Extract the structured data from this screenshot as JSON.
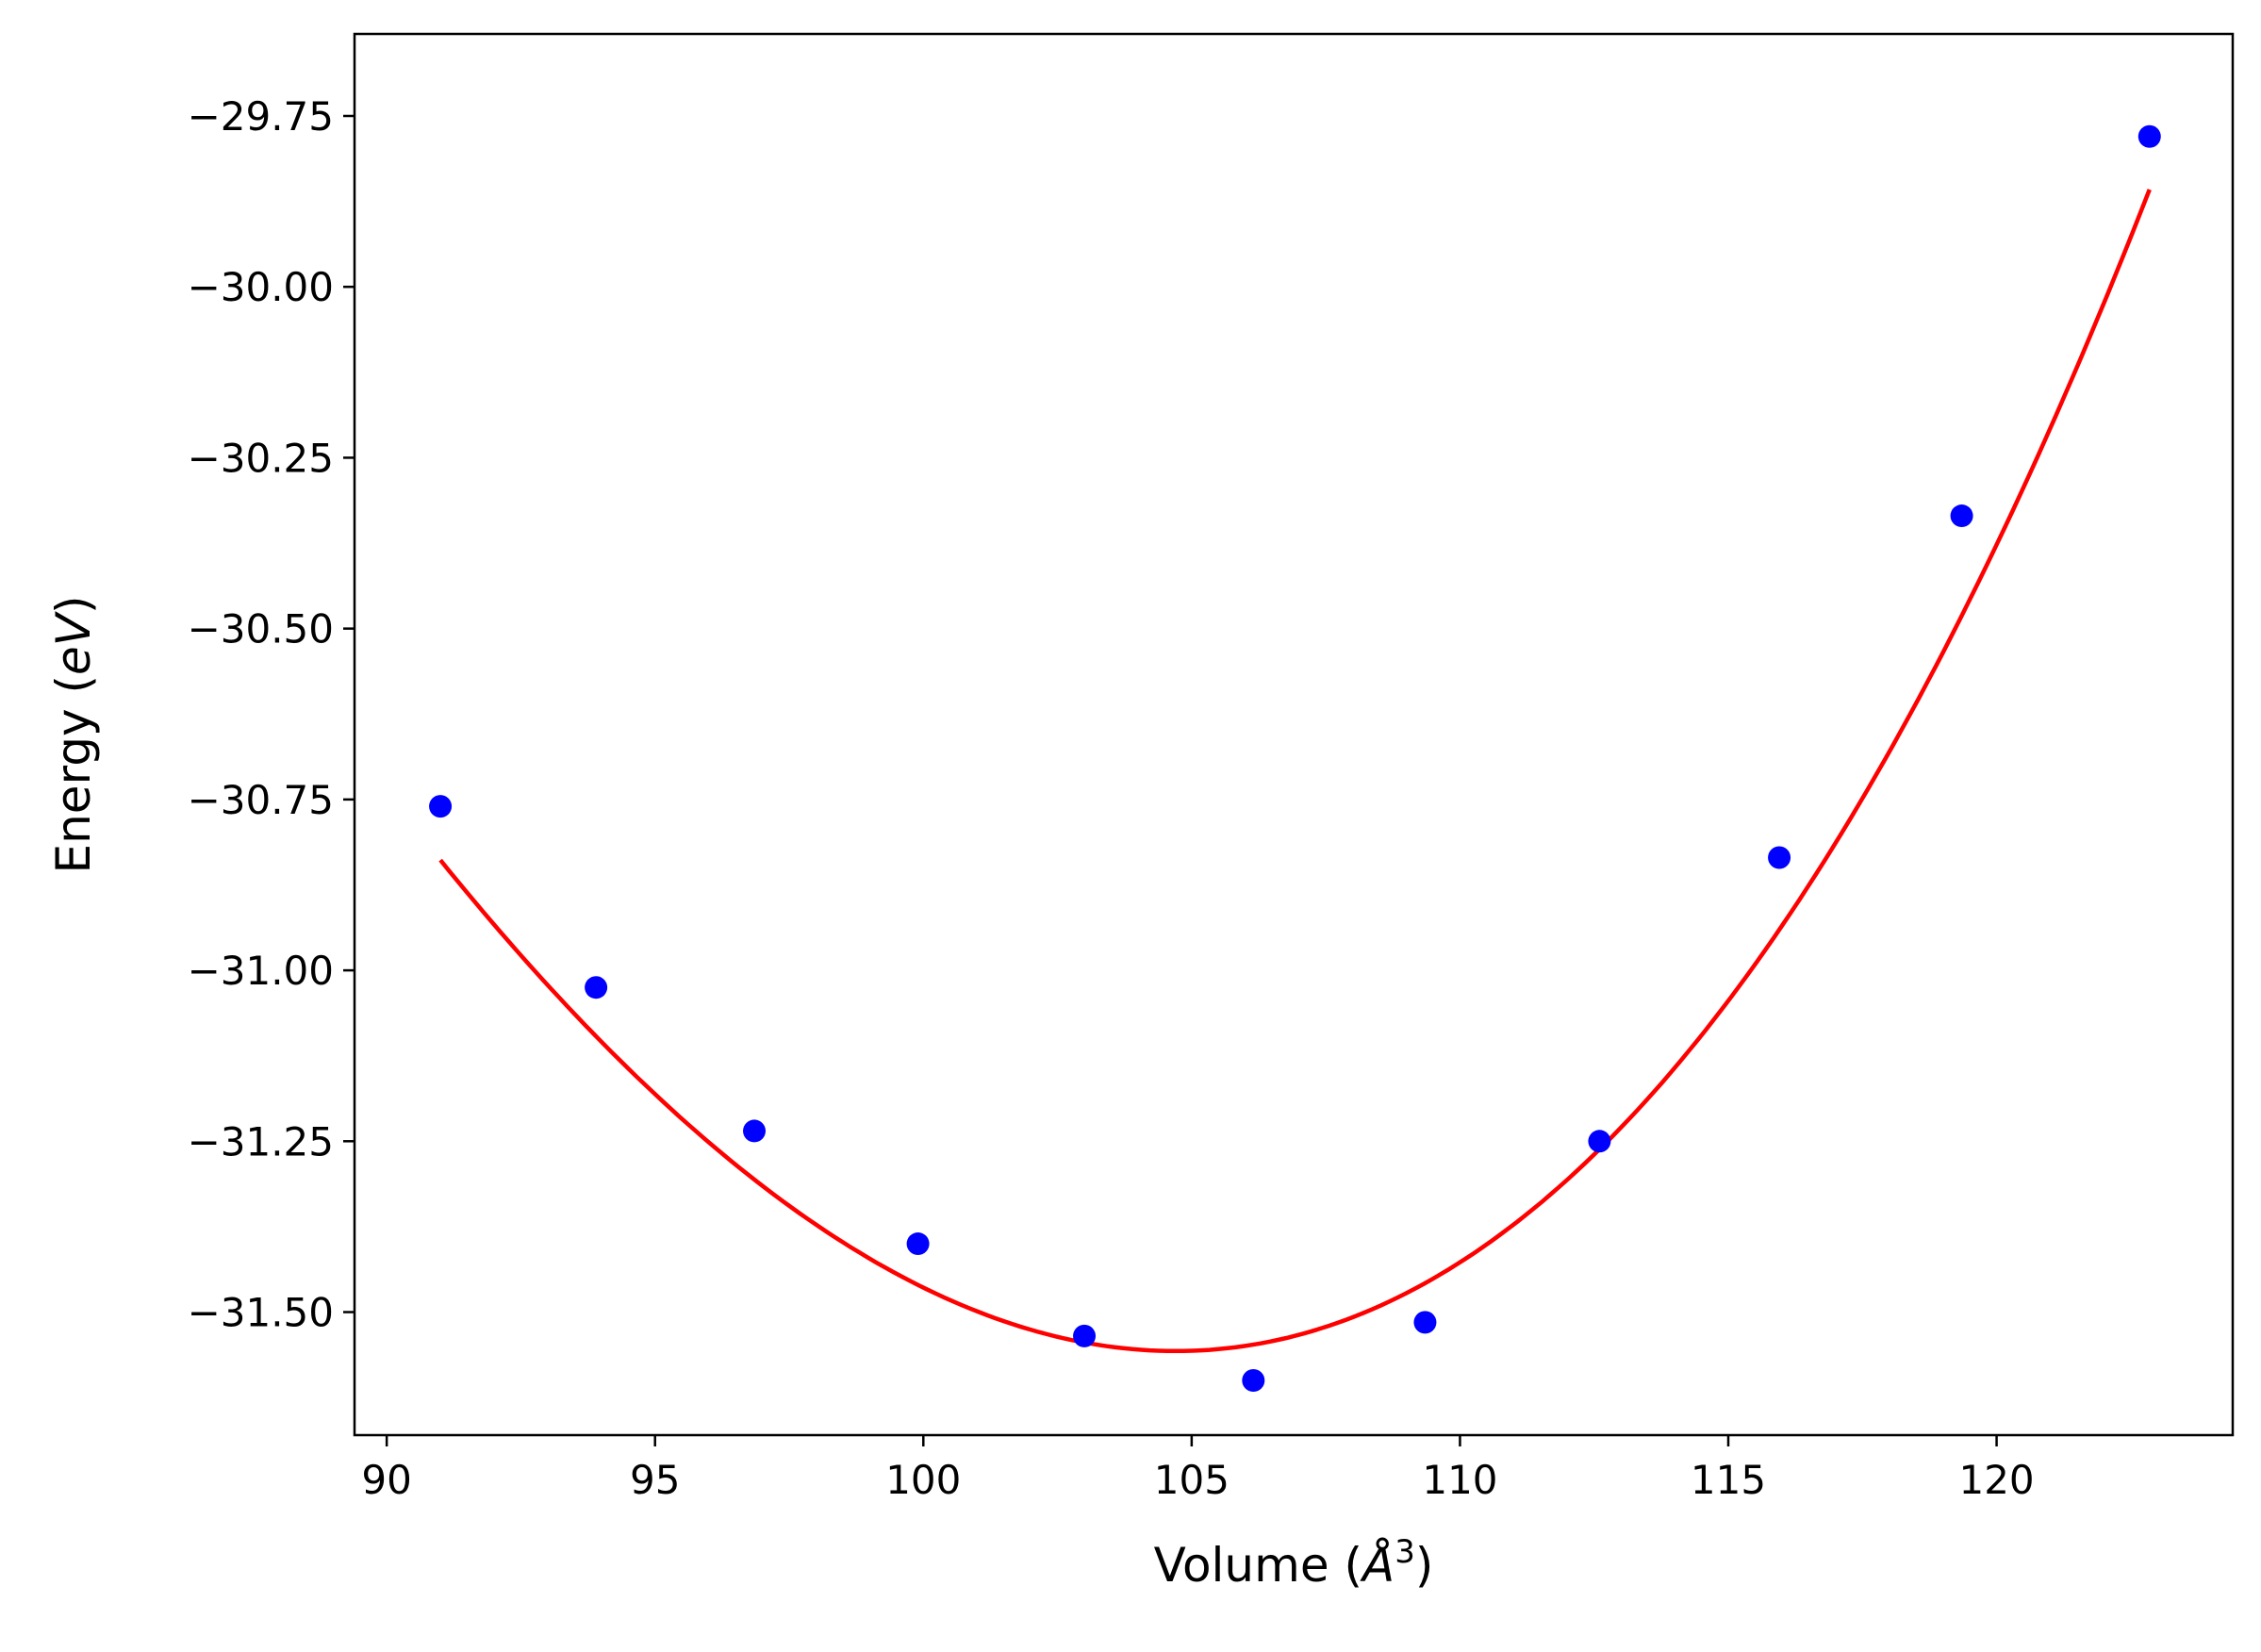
{
  "chart_data": {
    "type": "scatter",
    "title": "",
    "xlabel": "Volume (Å³)",
    "xlabel_parts": {
      "prefix": "Volume (",
      "symbol": "Å",
      "exponent": "3",
      "suffix": ")"
    },
    "ylabel": "Energy (eV)",
    "ylabel_parts": {
      "prefix": "Energy (",
      "italic": "eV",
      "suffix": ")"
    },
    "xlim": [
      89.4,
      124.4
    ],
    "ylim": [
      -31.68,
      -29.63
    ],
    "xticks": [
      90,
      95,
      100,
      105,
      110,
      115,
      120
    ],
    "xtick_labels": [
      "90",
      "95",
      "100",
      "105",
      "110",
      "115",
      "120"
    ],
    "yticks": [
      -29.75,
      -30.0,
      -30.25,
      -30.5,
      -30.75,
      -31.0,
      -31.25,
      -31.5
    ],
    "ytick_labels": [
      "−29.75",
      "−30.00",
      "−30.25",
      "−30.50",
      "−30.75",
      "−31.00",
      "−31.25",
      "−31.50"
    ],
    "grid": false,
    "series": [
      {
        "kind": "scatter",
        "color": "#0000ff",
        "x": [
          91.0,
          93.9,
          96.85,
          99.9,
          103.0,
          106.15,
          109.35,
          112.6,
          115.95,
          119.35,
          122.85
        ],
        "y": [
          -30.76,
          -31.025,
          -31.235,
          -31.4,
          -31.535,
          -31.6,
          -31.515,
          -31.25,
          -30.835,
          -30.335,
          -29.78
        ]
      },
      {
        "kind": "line",
        "color": "#ff0000",
        "fit": {
          "type": "quadratic",
          "vertex_x": 104.7,
          "vertex_y": -31.557,
          "a": 0.0044,
          "x_start": 91.0,
          "x_end": 122.85
        }
      }
    ]
  }
}
